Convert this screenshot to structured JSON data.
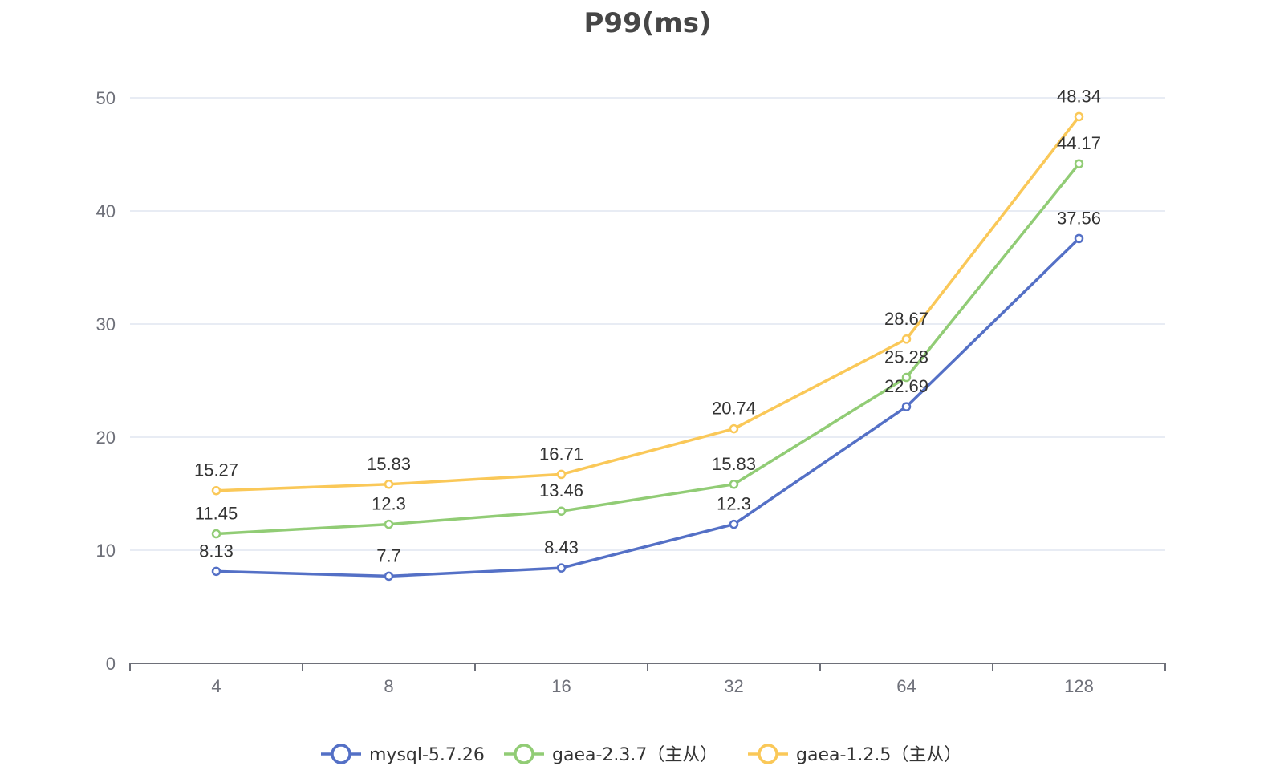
{
  "chart_data": {
    "type": "line",
    "title": "P99(ms)",
    "xlabel": "",
    "ylabel": "",
    "categories": [
      "4",
      "8",
      "16",
      "32",
      "64",
      "128"
    ],
    "ylim": [
      0,
      50
    ],
    "yticks": [
      0,
      10,
      20,
      30,
      40,
      50
    ],
    "grid": true,
    "legend_position": "bottom",
    "series": [
      {
        "name": "mysql-5.7.26",
        "color": "#5470c6",
        "values": [
          8.13,
          7.7,
          8.43,
          12.3,
          22.69,
          37.56
        ]
      },
      {
        "name": "gaea-2.3.7（主从）",
        "color": "#91cc75",
        "values": [
          11.45,
          12.3,
          13.46,
          15.83,
          25.28,
          44.17
        ]
      },
      {
        "name": "gaea-1.2.5（主从）",
        "color": "#fac858",
        "values": [
          15.27,
          15.83,
          16.71,
          20.74,
          28.67,
          48.34
        ]
      }
    ]
  }
}
